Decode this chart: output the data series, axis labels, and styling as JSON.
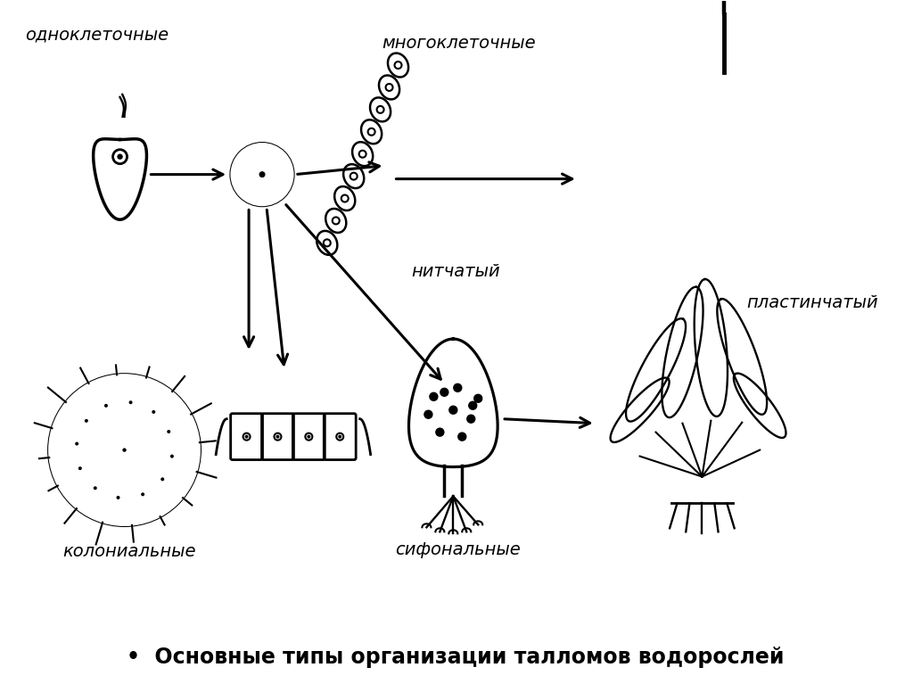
{
  "background_color": "#ffffff",
  "title_text": "•  Основные типы организации талломов водорослей",
  "label_odnocell": "одноклеточные",
  "label_mnogocell": "многоклеточные",
  "label_nitchatyj": "нитчатый",
  "label_plastinchatyj": "пластинчатый",
  "label_kolonialnye": "колониальные",
  "label_sifonalnye": "сифональные",
  "line_color": "#000000",
  "lw": 2.0,
  "title_fontsize": 17,
  "label_fontsize": 14
}
